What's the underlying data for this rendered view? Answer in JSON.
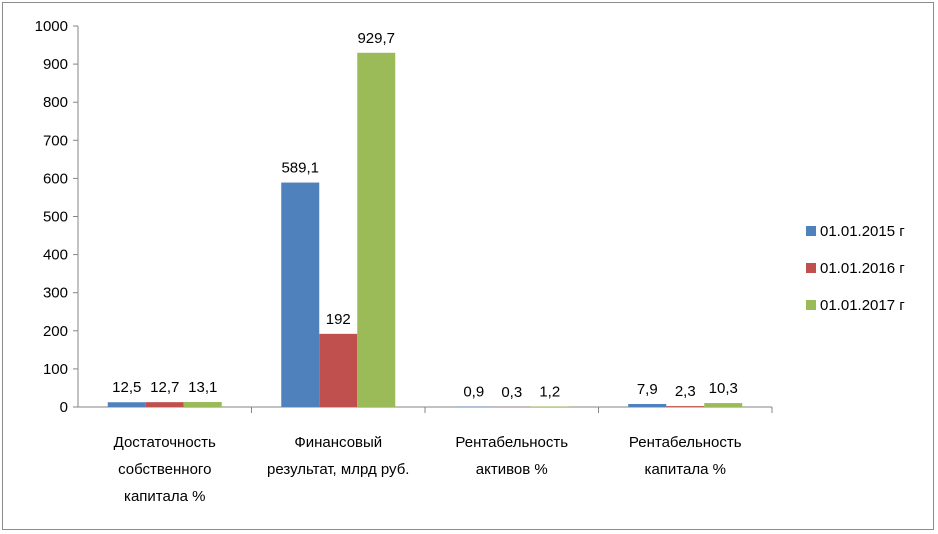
{
  "chart_data": {
    "type": "bar",
    "categories": [
      [
        "Достаточность",
        "собственного",
        "капитала %"
      ],
      [
        "Финансовый",
        "результат, млрд руб."
      ],
      [
        "Рентабельность",
        "активов %"
      ],
      [
        "Рентабельность",
        "капитала %"
      ]
    ],
    "series": [
      {
        "name": "01.01.2015 г",
        "color": "#4f81bd",
        "values": [
          12.5,
          589.1,
          0.9,
          7.9
        ],
        "labels": [
          "12,5",
          "589,1",
          "0,9",
          "7,9"
        ]
      },
      {
        "name": "01.01.2016 г",
        "color": "#c0504d",
        "values": [
          12.7,
          192,
          0.3,
          2.3
        ],
        "labels": [
          "12,7",
          "192",
          "0,3",
          "2,3"
        ]
      },
      {
        "name": "01.01.2017 г",
        "color": "#9bbb59",
        "values": [
          13.1,
          929.7,
          1.2,
          10.3
        ],
        "labels": [
          "13,1",
          "929,7",
          "1,2",
          "10,3"
        ]
      }
    ],
    "yticks": [
      "0",
      "100",
      "200",
      "300",
      "400",
      "500",
      "600",
      "700",
      "800",
      "900",
      "1000"
    ],
    "ylim": [
      0,
      1000
    ],
    "grid": false,
    "legend": "right"
  }
}
